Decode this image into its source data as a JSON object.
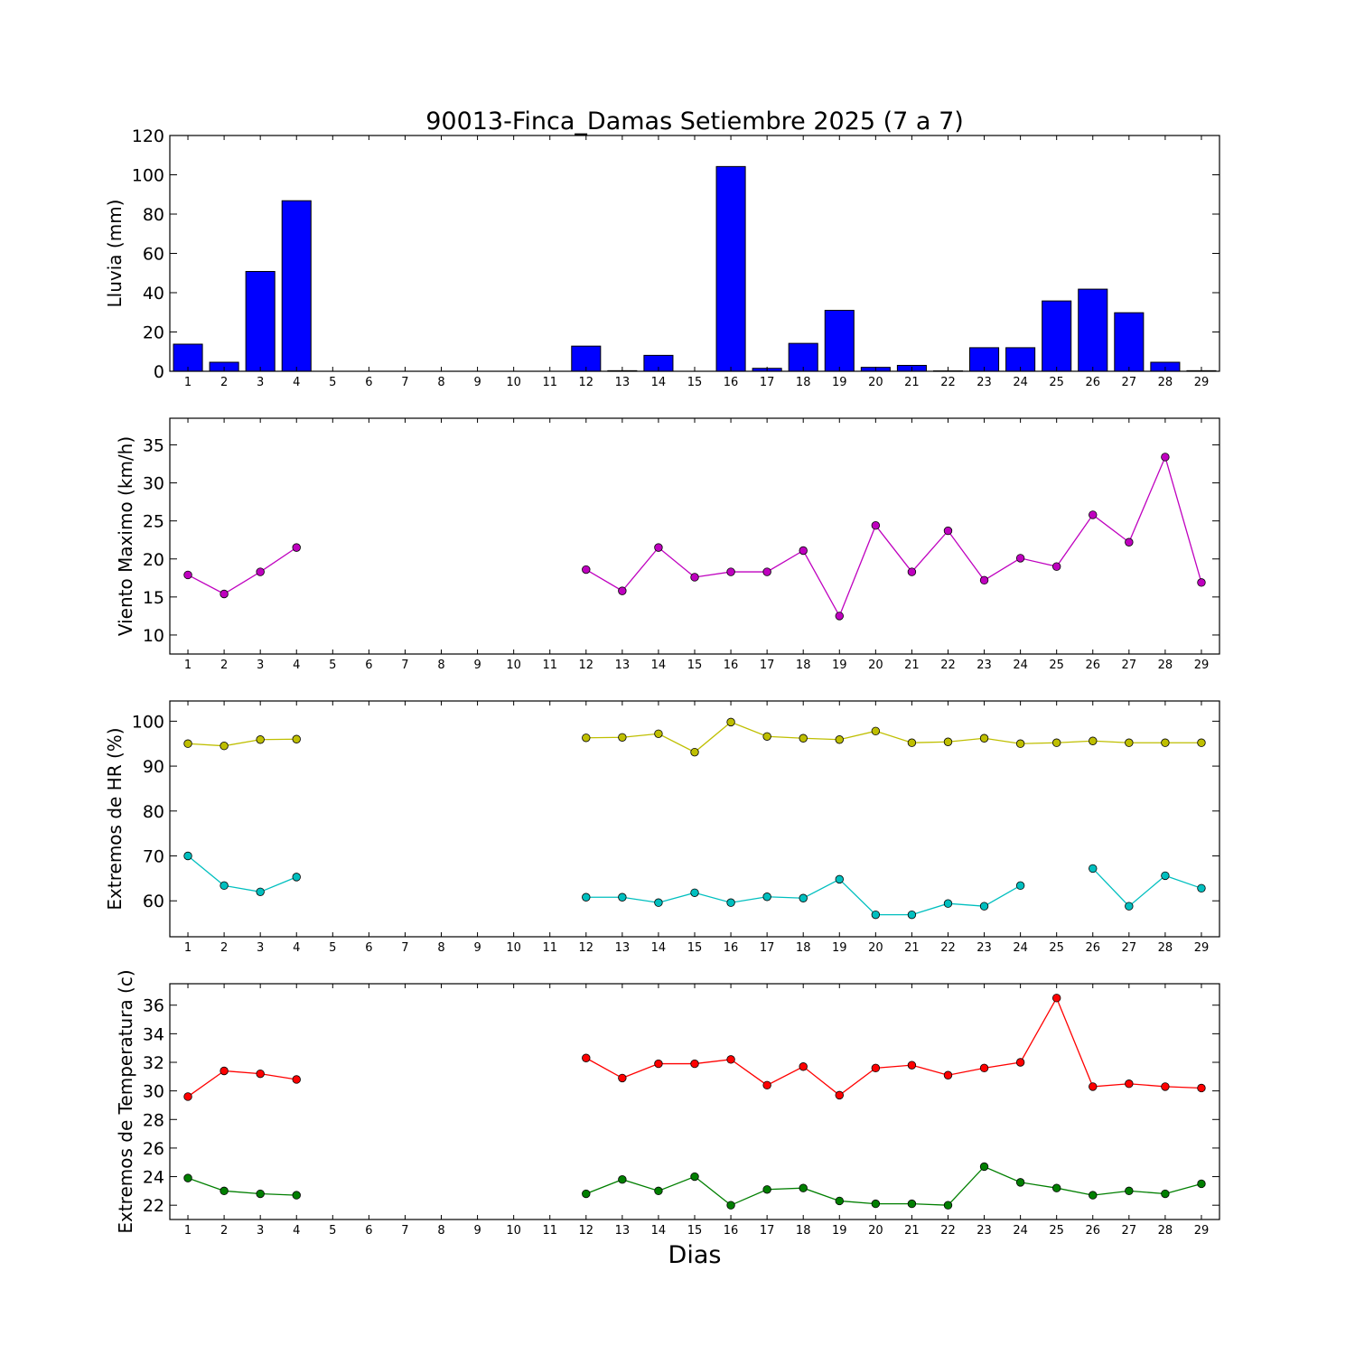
{
  "chart_data": {
    "type": "composite",
    "title": "90013-Finca_Damas Setiembre 2025  (7 a 7)",
    "xlabel": "Dias",
    "days": [
      1,
      2,
      3,
      4,
      5,
      6,
      7,
      8,
      9,
      10,
      11,
      12,
      13,
      14,
      15,
      16,
      17,
      18,
      19,
      20,
      21,
      22,
      23,
      24,
      25,
      26,
      27,
      28,
      29
    ],
    "panels": [
      {
        "type": "bar",
        "ylabel": "Lluvia (mm)",
        "ylim": [
          0,
          120
        ],
        "yticks": [
          0,
          20,
          40,
          60,
          80,
          100,
          120
        ],
        "color": "#0000ff",
        "series": [
          {
            "values": [
              13.8,
              4.6,
              50.8,
              86.8,
              null,
              null,
              null,
              null,
              null,
              null,
              null,
              12.8,
              0.3,
              8.1,
              null,
              104.2,
              1.5,
              14.2,
              31.0,
              2.0,
              3.0,
              0.2,
              12.0,
              12.0,
              35.8,
              41.8,
              29.8,
              4.6,
              0.3
            ]
          }
        ]
      },
      {
        "type": "line",
        "ylabel": "Viento Maximo (km/h)",
        "ylim": [
          7.5,
          38.5
        ],
        "yticks": [
          10,
          15,
          20,
          25,
          30,
          35
        ],
        "series": [
          {
            "color": "#bf00bf",
            "values": [
              17.9,
              15.4,
              18.3,
              21.5,
              null,
              null,
              null,
              null,
              null,
              null,
              null,
              18.6,
              15.8,
              21.5,
              17.6,
              18.3,
              18.3,
              21.1,
              12.5,
              24.4,
              18.3,
              23.7,
              17.2,
              20.1,
              19.0,
              25.8,
              22.2,
              33.4,
              16.9
            ]
          }
        ]
      },
      {
        "type": "line",
        "ylabel": "Extremos de HR (%)",
        "ylim": [
          52,
          104.5
        ],
        "yticks": [
          60,
          70,
          80,
          90,
          100
        ],
        "series": [
          {
            "color": "#bfbf00",
            "values": [
              95.0,
              94.5,
              95.9,
              96.0,
              null,
              null,
              null,
              null,
              null,
              null,
              null,
              96.3,
              96.4,
              97.2,
              93.1,
              99.8,
              96.6,
              96.2,
              95.9,
              97.8,
              95.2,
              95.4,
              96.2,
              95.0,
              95.2,
              95.6,
              95.2,
              95.2,
              95.2
            ]
          },
          {
            "color": "#00bfbf",
            "values": [
              70.0,
              63.4,
              62.0,
              65.3,
              null,
              null,
              null,
              null,
              null,
              null,
              null,
              60.8,
              60.8,
              59.6,
              61.8,
              59.6,
              60.9,
              60.6,
              64.8,
              56.9,
              56.9,
              59.4,
              58.8,
              63.4,
              null,
              67.2,
              58.8,
              65.6,
              62.8
            ]
          }
        ]
      },
      {
        "type": "line",
        "ylabel": "Extremos de Temperatura (c)",
        "ylim": [
          21,
          37.5
        ],
        "yticks": [
          22,
          24,
          26,
          28,
          30,
          32,
          34,
          36
        ],
        "series": [
          {
            "color": "#ff0000",
            "values": [
              29.6,
              31.4,
              31.2,
              30.8,
              null,
              null,
              null,
              null,
              null,
              null,
              null,
              32.3,
              30.9,
              31.9,
              31.9,
              32.2,
              30.4,
              31.7,
              29.7,
              31.6,
              31.8,
              31.1,
              31.6,
              32.0,
              36.5,
              30.3,
              30.5,
              30.3,
              30.2
            ]
          },
          {
            "color": "#007f00",
            "values": [
              23.9,
              23.0,
              22.8,
              22.7,
              null,
              null,
              null,
              null,
              null,
              null,
              null,
              22.8,
              23.8,
              23.0,
              24.0,
              22.0,
              23.1,
              23.2,
              22.3,
              22.1,
              22.1,
              22.0,
              24.7,
              23.6,
              23.2,
              22.7,
              23.0,
              22.8,
              23.5
            ]
          }
        ]
      }
    ]
  }
}
